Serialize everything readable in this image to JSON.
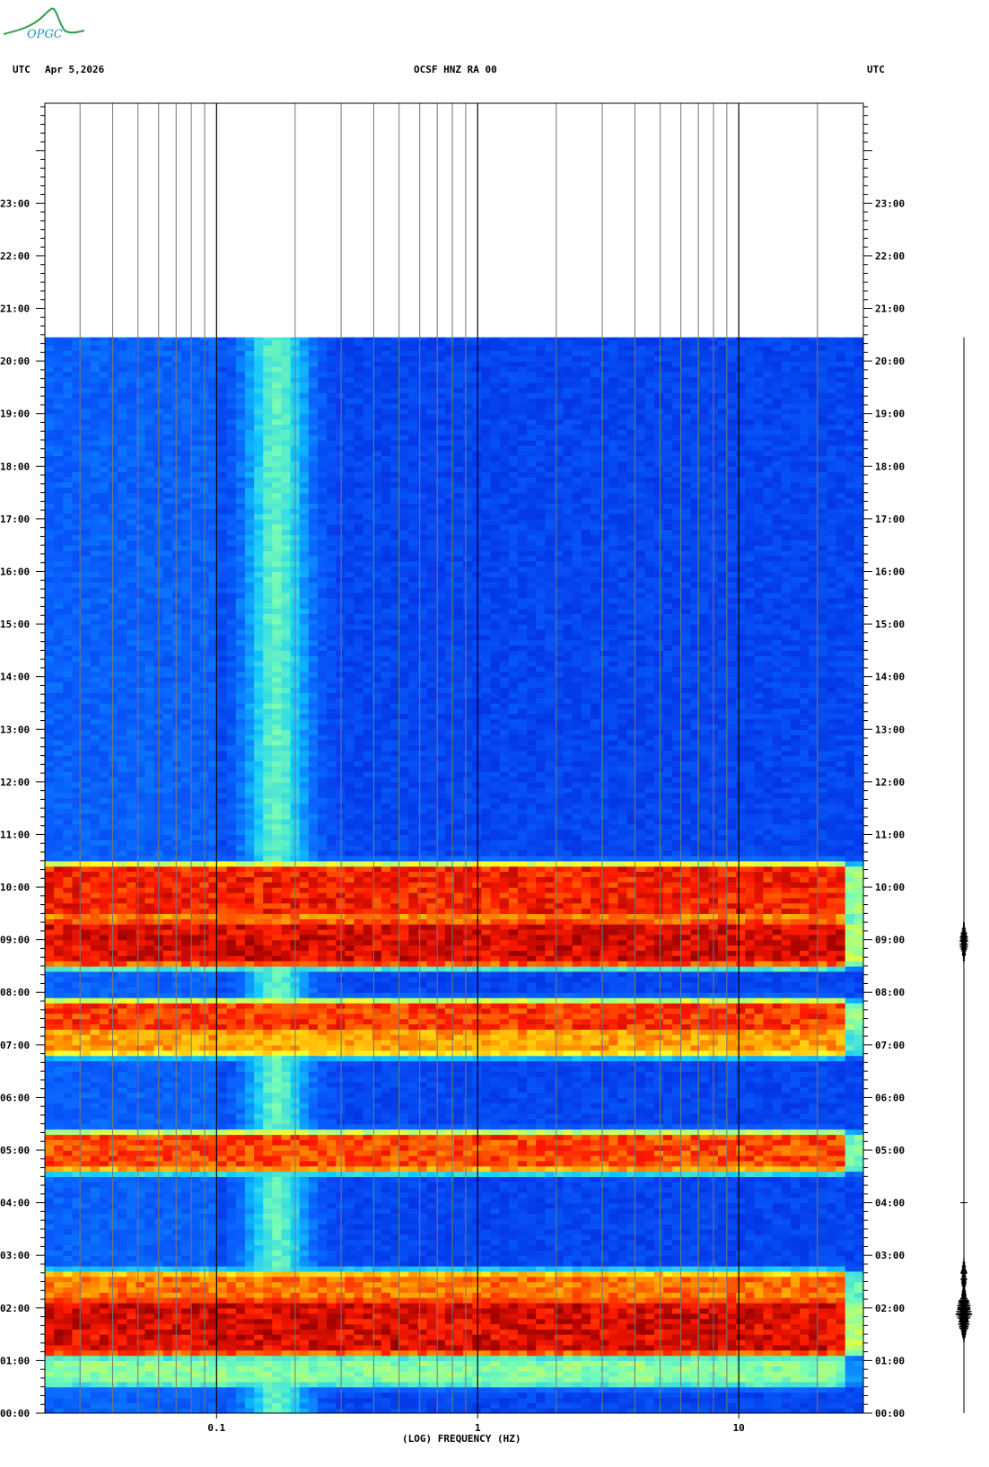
{
  "logo": {
    "text": "OPGC",
    "color": "#1f8fbf",
    "accent": "#2e9e44"
  },
  "header": {
    "left_tz": "UTC",
    "date": "Apr 5,2026",
    "station": "OCSF HNZ RA 00",
    "right_tz": "UTC"
  },
  "chart_data": {
    "type": "heatmap",
    "title": "OCSF HNZ RA 00",
    "xlabel": "(LOG) FREQUENCY (HZ)",
    "x_scale": "log",
    "xlim": [
      0.022,
      30
    ],
    "x_ticks": [
      {
        "value": 0.1,
        "label": "0.1"
      },
      {
        "value": 1,
        "label": "1"
      },
      {
        "value": 10,
        "label": "10"
      }
    ],
    "y_unit": "hours UTC",
    "ylim": [
      0,
      24.9
    ],
    "y_ticks": [
      {
        "value": 0,
        "label": "00:00"
      },
      {
        "value": 1,
        "label": "01:00"
      },
      {
        "value": 2,
        "label": "02:00"
      },
      {
        "value": 3,
        "label": "03:00"
      },
      {
        "value": 4,
        "label": "04:00"
      },
      {
        "value": 5,
        "label": "05:00"
      },
      {
        "value": 6,
        "label": "06:00"
      },
      {
        "value": 7,
        "label": "07:00"
      },
      {
        "value": 8,
        "label": "08:00"
      },
      {
        "value": 9,
        "label": "09:00"
      },
      {
        "value": 10,
        "label": "10:00"
      },
      {
        "value": 11,
        "label": "11:00"
      },
      {
        "value": 12,
        "label": "12:00"
      },
      {
        "value": 13,
        "label": "13:00"
      },
      {
        "value": 14,
        "label": "14:00"
      },
      {
        "value": 15,
        "label": "15:00"
      },
      {
        "value": 16,
        "label": "16:00"
      },
      {
        "value": 17,
        "label": "17:00"
      },
      {
        "value": 18,
        "label": "18:00"
      },
      {
        "value": 19,
        "label": "19:00"
      },
      {
        "value": 20,
        "label": "20:00"
      },
      {
        "value": 21,
        "label": "21:00"
      },
      {
        "value": 22,
        "label": "22:00"
      },
      {
        "value": 23,
        "label": "23:00"
      }
    ],
    "data_end_hour": 20.45,
    "colormap": [
      "#0000a0",
      "#0022dd",
      "#0a66ff",
      "#10c8ff",
      "#7fffb0",
      "#ffff20",
      "#ff9a00",
      "#ff1a00",
      "#9a0000"
    ],
    "high_energy_bands": [
      {
        "start": 9.6,
        "end": 10.25,
        "level": 0.95
      },
      {
        "start": 8.7,
        "end": 9.2,
        "level": 1.0
      },
      {
        "start": 7.45,
        "end": 7.65,
        "level": 0.92
      },
      {
        "start": 7.0,
        "end": 7.25,
        "level": 0.8
      },
      {
        "start": 4.8,
        "end": 5.15,
        "level": 0.9
      },
      {
        "start": 2.2,
        "end": 2.5,
        "level": 0.85
      },
      {
        "start": 1.3,
        "end": 2.0,
        "level": 1.0
      },
      {
        "start": 0.7,
        "end": 0.9,
        "level": 0.55
      }
    ],
    "trace_events": [
      {
        "hour": 8.95,
        "amplitude": 0.45
      },
      {
        "hour": 1.9,
        "amplitude": 0.8
      },
      {
        "hour": 2.6,
        "amplitude": 0.35
      }
    ]
  }
}
